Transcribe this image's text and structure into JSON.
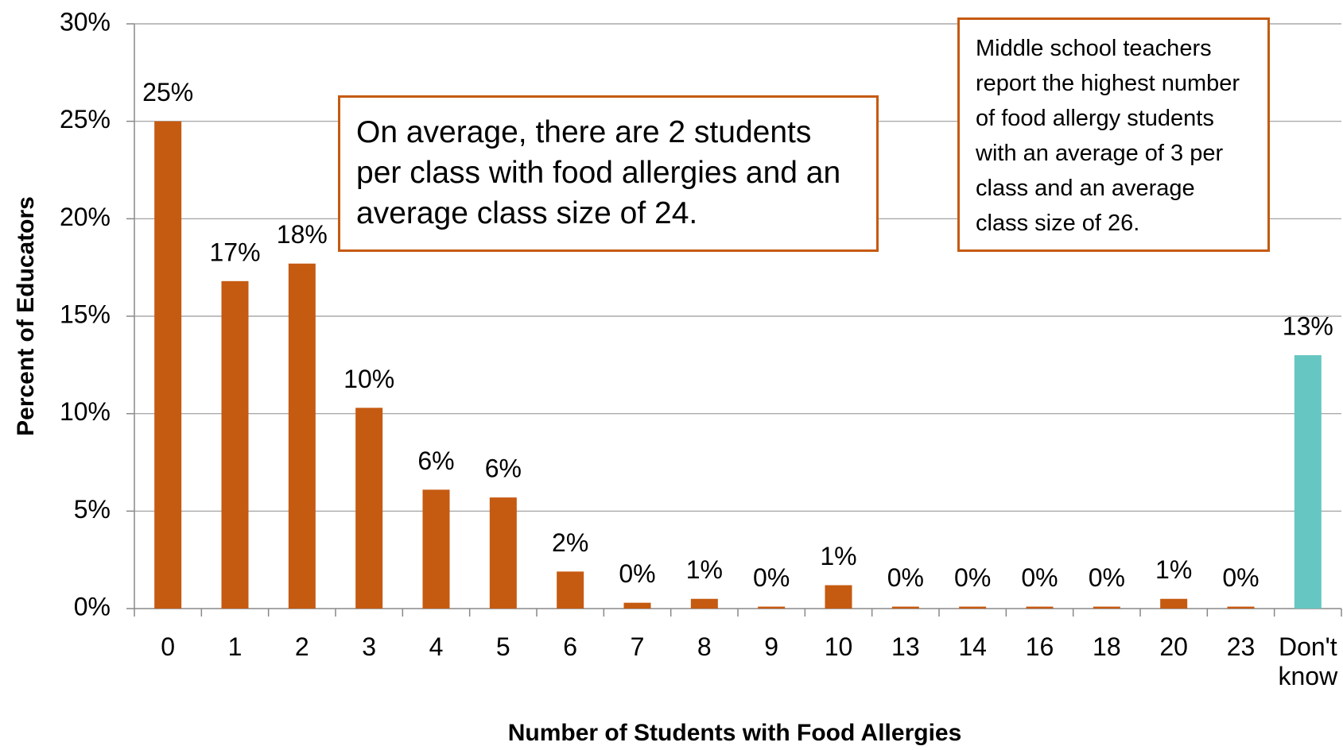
{
  "chart_data": {
    "type": "bar",
    "x_label": "Number of Students with Food Allergies",
    "y_label": "Percent of Educators",
    "categories": [
      "0",
      "1",
      "2",
      "3",
      "4",
      "5",
      "6",
      "7",
      "8",
      "9",
      "10",
      "13",
      "14",
      "16",
      "18",
      "20",
      "23",
      "Don't know"
    ],
    "values": [
      25.0,
      16.8,
      17.7,
      10.3,
      6.1,
      5.7,
      1.9,
      0.3,
      0.5,
      0.1,
      1.2,
      0.1,
      0.1,
      0.1,
      0.1,
      0.5,
      0.1,
      13.0
    ],
    "value_labels": [
      "25%",
      "17%",
      "18%",
      "10%",
      "6%",
      "6%",
      "2%",
      "0%",
      "1%",
      "0%",
      "1%",
      "0%",
      "0%",
      "0%",
      "0%",
      "1%",
      "0%",
      "13%"
    ],
    "colors": [
      "#c55a11",
      "#c55a11",
      "#c55a11",
      "#c55a11",
      "#c55a11",
      "#c55a11",
      "#c55a11",
      "#c55a11",
      "#c55a11",
      "#c55a11",
      "#c55a11",
      "#c55a11",
      "#c55a11",
      "#c55a11",
      "#c55a11",
      "#c55a11",
      "#c55a11",
      "#66c6c2"
    ],
    "ylim": [
      0,
      30
    ],
    "yticks": [
      {
        "value": 0,
        "label": "0%"
      },
      {
        "value": 5,
        "label": "5%"
      },
      {
        "value": 10,
        "label": "10%"
      },
      {
        "value": 15,
        "label": "15%"
      },
      {
        "value": 20,
        "label": "20%"
      },
      {
        "value": 25,
        "label": "25%"
      },
      {
        "value": 30,
        "label": "30%"
      }
    ],
    "grid": true,
    "annotations": [
      "On average, there are 2 students per class with food allergies and an average class size of 24.",
      "Middle school teachers report the highest number of food allergy students with an average of 3 per class and an average class size of 26."
    ]
  }
}
